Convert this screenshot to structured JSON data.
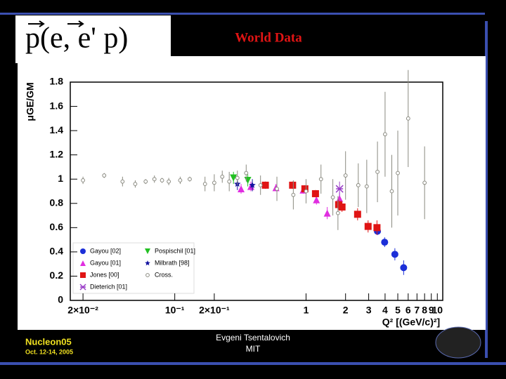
{
  "header": {
    "formula": "p(e, e' p)"
  },
  "chart_data": {
    "type": "scatter",
    "title": "World Data",
    "xlabel": "Q² [(GeV/c)²]",
    "ylabel": "μGE/GM",
    "xscale": "log",
    "xlim": [
      0.016,
      11
    ],
    "ylim": [
      0,
      1.8
    ],
    "xticks": [
      {
        "value": 0.02,
        "label": "2×10⁻²"
      },
      {
        "value": 0.1,
        "label": "10⁻¹"
      },
      {
        "value": 0.2,
        "label": "2×10⁻¹"
      },
      1,
      2,
      3,
      4,
      5,
      6,
      7,
      8,
      9,
      10
    ],
    "yticks": [
      0,
      0.2,
      0.4,
      0.6,
      0.8,
      1,
      1.2,
      1.4,
      1.6,
      1.8
    ],
    "grid": false,
    "legend": "lower left",
    "series": [
      {
        "name": "Gayou [02]",
        "color": "#1c2fd8",
        "marker": "circle",
        "x": [
          3.5,
          3.97,
          4.75,
          5.54
        ],
        "values": [
          0.57,
          0.48,
          0.38,
          0.27
        ],
        "errors": [
          0.03,
          0.04,
          0.05,
          0.06
        ]
      },
      {
        "name": "Gayou [01]",
        "color": "#e02ee0",
        "marker": "triangle",
        "x": [
          0.32,
          0.38,
          0.59,
          0.95,
          1.2,
          1.45,
          1.8
        ],
        "values": [
          0.92,
          0.94,
          0.93,
          0.91,
          0.83,
          0.72,
          0.84
        ],
        "errors": [
          0.04,
          0.04,
          0.03,
          0.03,
          0.04,
          0.05,
          0.05
        ]
      },
      {
        "name": "Jones [00]",
        "color": "#e01414",
        "marker": "square",
        "x": [
          0.49,
          0.79,
          0.98,
          1.18,
          1.77,
          1.88,
          2.47,
          2.97,
          3.47
        ],
        "values": [
          0.95,
          0.95,
          0.92,
          0.88,
          0.79,
          0.77,
          0.71,
          0.61,
          0.6
        ],
        "errors": [
          0.03,
          0.03,
          0.03,
          0.03,
          0.04,
          0.04,
          0.05,
          0.05,
          0.06
        ]
      },
      {
        "name": "Dieterich [01]",
        "color": "#9a3ec8",
        "marker": "cross",
        "x": [
          1.8
        ],
        "values": [
          0.92
        ],
        "errors": [
          0.06
        ]
      },
      {
        "name": "Pospischil [01]",
        "color": "#22c022",
        "marker": "triangledown",
        "x": [
          0.28,
          0.36
        ],
        "values": [
          1.01,
          0.99
        ],
        "errors": [
          0.05,
          0.05
        ]
      },
      {
        "name": "Milbrath [98]",
        "color": "#1414a0",
        "marker": "star",
        "x": [
          0.3,
          0.39
        ],
        "values": [
          0.96,
          0.95
        ],
        "errors": [
          0.05,
          0.05
        ]
      },
      {
        "name": "Cross.",
        "color": "#8a8a80",
        "marker": "open",
        "x": [
          0.02,
          0.029,
          0.04,
          0.05,
          0.06,
          0.07,
          0.08,
          0.09,
          0.11,
          0.13,
          0.17,
          0.2,
          0.23,
          0.26,
          0.3,
          0.35,
          0.45,
          0.6,
          0.8,
          1.0,
          1.3,
          1.6,
          1.75,
          2.0,
          2.5,
          2.9,
          3.5,
          4.0,
          4.5,
          5.0,
          6.0,
          8.0
        ],
        "values": [
          0.99,
          1.03,
          0.98,
          0.96,
          0.98,
          1.0,
          0.99,
          0.98,
          0.99,
          1.0,
          0.96,
          0.97,
          1.02,
          0.98,
          1.01,
          1.05,
          0.95,
          0.92,
          0.87,
          0.9,
          1.0,
          0.85,
          0.72,
          1.03,
          0.95,
          0.94,
          1.06,
          1.37,
          0.9,
          1.05,
          1.5,
          0.97
        ],
        "errors": [
          0.03,
          0.02,
          0.04,
          0.03,
          0.02,
          0.03,
          0.02,
          0.03,
          0.03,
          0.02,
          0.06,
          0.07,
          0.05,
          0.08,
          0.06,
          0.07,
          0.08,
          0.1,
          0.12,
          0.1,
          0.12,
          0.15,
          0.14,
          0.2,
          0.18,
          0.22,
          0.25,
          0.35,
          0.3,
          0.35,
          0.4,
          0.3
        ]
      }
    ]
  },
  "footer": {
    "conference": "Nucleon05",
    "dates": "Oct. 12-14, 2005",
    "author": "Evgeni Tsentalovich",
    "affiliation": "MIT"
  }
}
